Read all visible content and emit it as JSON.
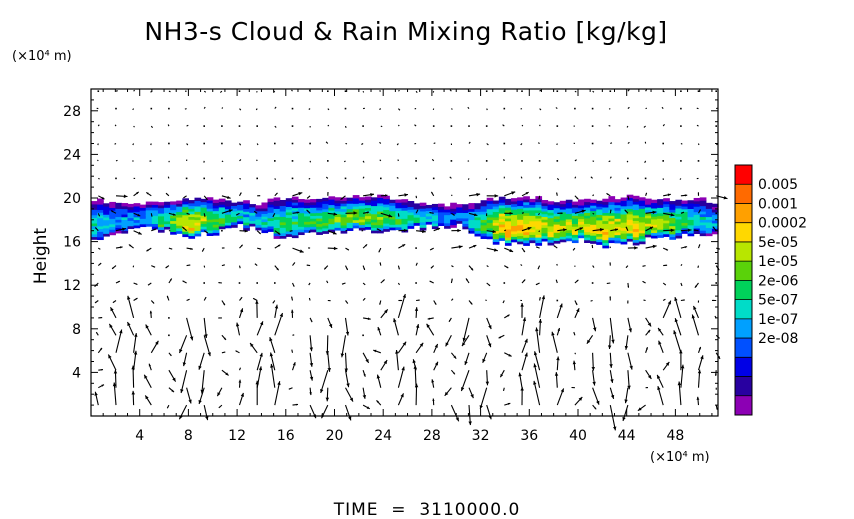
{
  "chart_data": {
    "type": "heatmap",
    "title": "NH3-s Cloud & Rain Mixing Ratio [kg/kg]",
    "ylabel": "Height",
    "xlabel": "",
    "x_unit": "(×10⁴ m)",
    "y_unit": "(×10⁴ m)",
    "footer": "TIME  =  3110000.0",
    "xlim": [
      0,
      51.5
    ],
    "ylim": [
      0,
      30
    ],
    "xticks": [
      4,
      8,
      12,
      16,
      20,
      24,
      28,
      32,
      36,
      40,
      44,
      48
    ],
    "yticks": [
      4,
      8,
      12,
      16,
      20,
      24,
      28
    ],
    "grid": false,
    "colorbar": {
      "placement": "right",
      "labels": [
        "0.005",
        "0.001",
        "0.0002",
        "5e-05",
        "1e-05",
        "2e-06",
        "5e-07",
        "1e-07",
        "2e-08"
      ],
      "colors": [
        "#ff0000",
        "#ff6a00",
        "#ffa000",
        "#ffd800",
        "#b8e600",
        "#5ad20a",
        "#00d25a",
        "#00dcc8",
        "#00a0ff",
        "#0050ff",
        "#0000e6",
        "#2800a0",
        "#8c00b4"
      ]
    },
    "cloud_layer": {
      "columns": [
        {
          "x": 0.0,
          "bottom": 16.0,
          "top": 19.8,
          "peak": 5
        },
        {
          "x": 2.0,
          "bottom": 17.0,
          "top": 19.4,
          "peak": 4
        },
        {
          "x": 4.0,
          "bottom": 17.2,
          "top": 19.3,
          "peak": 4
        },
        {
          "x": 6.0,
          "bottom": 17.0,
          "top": 19.6,
          "peak": 6
        },
        {
          "x": 8.0,
          "bottom": 16.4,
          "top": 19.9,
          "peak": 9
        },
        {
          "x": 10.0,
          "bottom": 16.8,
          "top": 19.8,
          "peak": 7
        },
        {
          "x": 12.0,
          "bottom": 17.4,
          "top": 19.6,
          "peak": 5
        },
        {
          "x": 14.0,
          "bottom": 17.2,
          "top": 19.4,
          "peak": 5
        },
        {
          "x": 16.0,
          "bottom": 16.2,
          "top": 19.9,
          "peak": 6
        },
        {
          "x": 18.0,
          "bottom": 17.0,
          "top": 20.0,
          "peak": 6
        },
        {
          "x": 20.0,
          "bottom": 16.8,
          "top": 19.8,
          "peak": 7
        },
        {
          "x": 22.0,
          "bottom": 17.0,
          "top": 19.9,
          "peak": 7
        },
        {
          "x": 24.0,
          "bottom": 16.6,
          "top": 20.0,
          "peak": 7
        },
        {
          "x": 26.0,
          "bottom": 17.2,
          "top": 19.6,
          "peak": 6
        },
        {
          "x": 28.0,
          "bottom": 17.4,
          "top": 19.5,
          "peak": 5
        },
        {
          "x": 30.0,
          "bottom": 17.6,
          "top": 19.3,
          "peak": 3
        },
        {
          "x": 32.0,
          "bottom": 16.4,
          "top": 19.6,
          "peak": 6
        },
        {
          "x": 34.0,
          "bottom": 15.8,
          "top": 19.9,
          "peak": 10
        },
        {
          "x": 36.0,
          "bottom": 15.6,
          "top": 19.9,
          "peak": 9
        },
        {
          "x": 38.0,
          "bottom": 16.0,
          "top": 19.7,
          "peak": 8
        },
        {
          "x": 40.0,
          "bottom": 16.2,
          "top": 19.6,
          "peak": 8
        },
        {
          "x": 42.0,
          "bottom": 15.6,
          "top": 19.8,
          "peak": 9
        },
        {
          "x": 44.0,
          "bottom": 15.8,
          "top": 19.9,
          "peak": 9
        },
        {
          "x": 46.0,
          "bottom": 16.2,
          "top": 19.8,
          "peak": 8
        },
        {
          "x": 48.0,
          "bottom": 16.4,
          "top": 19.7,
          "peak": 7
        },
        {
          "x": 50.0,
          "bottom": 16.6,
          "top": 19.7,
          "peak": 5
        },
        {
          "x": 51.5,
          "bottom": 16.8,
          "top": 19.6,
          "peak": 4
        }
      ]
    }
  }
}
